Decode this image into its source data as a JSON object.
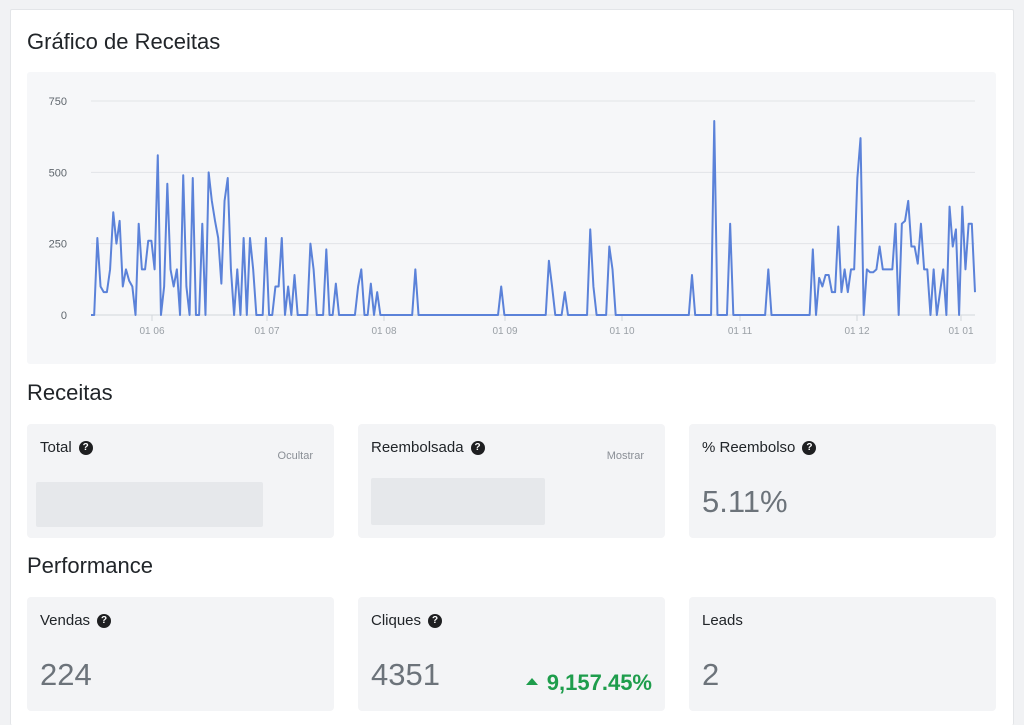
{
  "revenue_chart": {
    "title": "Gráfico de Receitas",
    "line_color": "#5b82d9"
  },
  "chart_data": {
    "type": "line",
    "title": "",
    "xlabel": "",
    "ylabel": "",
    "ylim": [
      0,
      750
    ],
    "y_ticks": [
      "750",
      "500",
      "250",
      "0"
    ],
    "x_ticks": [
      "01 06",
      "01 07",
      "01 08",
      "01 09",
      "01 10",
      "01 11",
      "01 12",
      "01 01"
    ],
    "grid": true,
    "series": [
      {
        "values": [
          0,
          0,
          270,
          100,
          80,
          80,
          160,
          360,
          250,
          330,
          100,
          160,
          120,
          100,
          0,
          320,
          160,
          160,
          260,
          260,
          160,
          560,
          0,
          100,
          460,
          160,
          100,
          160,
          0,
          490,
          100,
          0,
          480,
          0,
          0,
          320,
          0,
          500,
          400,
          330,
          270,
          110,
          400,
          480,
          160,
          0,
          160,
          0,
          270,
          0,
          270,
          160,
          0,
          0,
          0,
          270,
          0,
          0,
          100,
          100,
          270,
          0,
          100,
          0,
          140,
          0,
          0,
          0,
          0,
          250,
          160,
          0,
          0,
          0,
          230,
          0,
          0,
          110,
          0,
          0,
          0,
          0,
          0,
          0,
          100,
          160,
          0,
          0,
          110,
          0,
          80,
          0,
          0,
          0,
          0,
          0,
          0,
          0,
          0,
          0,
          0,
          0,
          160,
          0,
          0,
          0,
          0,
          0,
          0,
          0,
          0,
          0,
          0,
          0,
          0,
          0,
          0,
          0,
          0,
          0,
          0,
          0,
          0,
          0,
          0,
          0,
          0,
          0,
          0,
          100,
          0,
          0,
          0,
          0,
          0,
          0,
          0,
          0,
          0,
          0,
          0,
          0,
          0,
          0,
          190,
          100,
          0,
          0,
          0,
          80,
          0,
          0,
          0,
          0,
          0,
          0,
          0,
          300,
          100,
          0,
          0,
          0,
          0,
          240,
          160,
          0,
          0,
          0,
          0,
          0,
          0,
          0,
          0,
          0,
          0,
          0,
          0,
          0,
          0,
          0,
          0,
          0,
          0,
          0,
          0,
          0,
          0,
          0,
          0,
          140,
          0,
          0,
          0,
          0,
          0,
          0,
          680,
          0,
          0,
          0,
          0,
          320,
          0,
          0,
          0,
          0,
          0,
          0,
          0,
          0,
          0,
          0,
          0,
          160,
          0,
          0,
          0,
          0,
          0,
          0,
          0,
          0,
          0,
          0,
          0,
          0,
          0,
          230,
          0,
          130,
          100,
          140,
          140,
          80,
          80,
          310,
          80,
          160,
          80,
          160,
          160,
          480,
          620,
          0,
          160,
          150,
          150,
          160,
          240,
          160,
          160,
          160,
          160,
          320,
          0,
          320,
          330,
          400,
          240,
          240,
          180,
          320,
          160,
          160,
          0,
          160,
          0,
          80,
          160,
          0,
          380,
          240,
          300,
          0,
          380,
          160,
          320,
          320,
          80
        ]
      }
    ]
  },
  "receitas": {
    "title": "Receitas",
    "total_label": "Total",
    "total_toggle": "Ocultar",
    "reembolsada_label": "Reembolsada",
    "reembolsada_toggle": "Mostrar",
    "reembolso_pct_label": "% Reembolso",
    "reembolso_pct_value": "5.11%"
  },
  "performance": {
    "title": "Performance",
    "vendas_label": "Vendas",
    "vendas_value": "224",
    "cliques_label": "Cliques",
    "cliques_value": "4351",
    "cliques_growth": "9,157.45%",
    "leads_label": "Leads",
    "leads_value": "2"
  },
  "icons": {
    "help": "question-circle-icon",
    "growth": "caret-up-icon"
  }
}
